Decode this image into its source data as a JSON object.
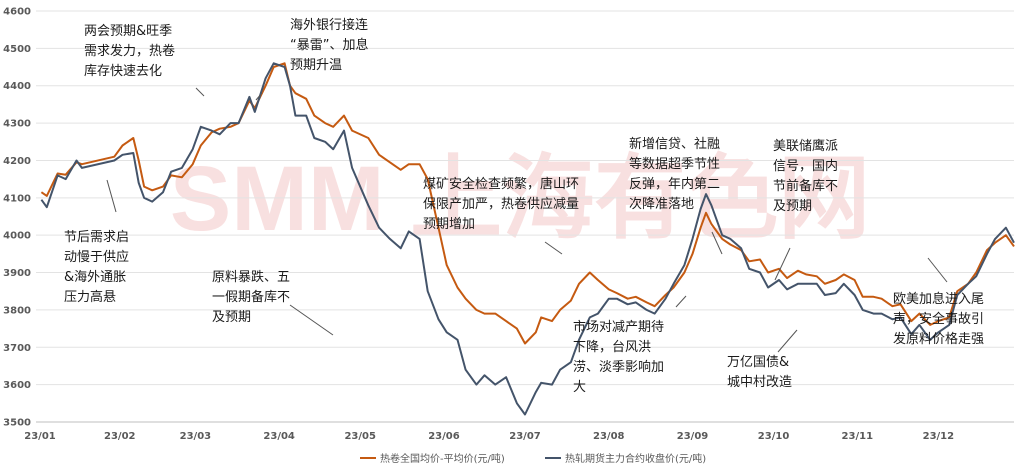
{
  "chart_data": {
    "type": "line",
    "title": "",
    "xlabel": "",
    "ylabel": "",
    "ylim": [
      3500,
      4600
    ],
    "y_ticks": [
      3500,
      3600,
      3700,
      3800,
      3900,
      4000,
      4100,
      4200,
      4300,
      4400,
      4500,
      4600
    ],
    "x_range": [
      "2023-01-01",
      "2023-12-29"
    ],
    "x_tick_labels": [
      "23/01",
      "23/02",
      "23/03",
      "23/04",
      "23/05",
      "23/06",
      "23/07",
      "23/08",
      "23/09",
      "23/10",
      "23/11",
      "23/12"
    ],
    "grid": "horizontal",
    "legend_position": "bottom",
    "watermark": "SMM 上海有色网",
    "colors": {
      "spot": "#C55A11",
      "futures": "#44546A"
    },
    "series": [
      {
        "name": "热卷全国均价-平均价(元/吨)",
        "points": [
          [
            "2023-01-03",
            4115
          ],
          [
            "2023-01-05",
            4105
          ],
          [
            "2023-01-09",
            4165
          ],
          [
            "2023-01-12",
            4162
          ],
          [
            "2023-01-16",
            4195
          ],
          [
            "2023-01-18",
            4190
          ],
          [
            "2023-01-30",
            4210
          ],
          [
            "2023-02-02",
            4240
          ],
          [
            "2023-02-06",
            4260
          ],
          [
            "2023-02-08",
            4200
          ],
          [
            "2023-02-10",
            4130
          ],
          [
            "2023-02-13",
            4120
          ],
          [
            "2023-02-17",
            4130
          ],
          [
            "2023-02-20",
            4160
          ],
          [
            "2023-02-24",
            4155
          ],
          [
            "2023-02-28",
            4190
          ],
          [
            "2023-03-03",
            4240
          ],
          [
            "2023-03-07",
            4275
          ],
          [
            "2023-03-10",
            4285
          ],
          [
            "2023-03-14",
            4290
          ],
          [
            "2023-03-17",
            4300
          ],
          [
            "2023-03-21",
            4360
          ],
          [
            "2023-03-23",
            4340
          ],
          [
            "2023-03-27",
            4400
          ],
          [
            "2023-03-30",
            4450
          ],
          [
            "2023-04-03",
            4460
          ],
          [
            "2023-04-05",
            4400
          ],
          [
            "2023-04-07",
            4380
          ],
          [
            "2023-04-11",
            4365
          ],
          [
            "2023-04-14",
            4320
          ],
          [
            "2023-04-18",
            4300
          ],
          [
            "2023-04-21",
            4290
          ],
          [
            "2023-04-25",
            4320
          ],
          [
            "2023-04-28",
            4280
          ],
          [
            "2023-05-04",
            4260
          ],
          [
            "2023-05-08",
            4215
          ],
          [
            "2023-05-12",
            4195
          ],
          [
            "2023-05-16",
            4175
          ],
          [
            "2023-05-19",
            4190
          ],
          [
            "2023-05-23",
            4190
          ],
          [
            "2023-05-26",
            4150
          ],
          [
            "2023-05-30",
            4020
          ],
          [
            "2023-06-02",
            3920
          ],
          [
            "2023-06-06",
            3860
          ],
          [
            "2023-06-09",
            3830
          ],
          [
            "2023-06-13",
            3800
          ],
          [
            "2023-06-16",
            3790
          ],
          [
            "2023-06-20",
            3790
          ],
          [
            "2023-06-24",
            3770
          ],
          [
            "2023-06-28",
            3750
          ],
          [
            "2023-07-01",
            3710
          ],
          [
            "2023-07-05",
            3740
          ],
          [
            "2023-07-07",
            3780
          ],
          [
            "2023-07-11",
            3770
          ],
          [
            "2023-07-14",
            3800
          ],
          [
            "2023-07-18",
            3825
          ],
          [
            "2023-07-21",
            3870
          ],
          [
            "2023-07-25",
            3900
          ],
          [
            "2023-07-28",
            3880
          ],
          [
            "2023-08-01",
            3855
          ],
          [
            "2023-08-04",
            3845
          ],
          [
            "2023-08-08",
            3830
          ],
          [
            "2023-08-11",
            3835
          ],
          [
            "2023-08-15",
            3820
          ],
          [
            "2023-08-18",
            3810
          ],
          [
            "2023-08-22",
            3840
          ],
          [
            "2023-08-25",
            3860
          ],
          [
            "2023-08-29",
            3900
          ],
          [
            "2023-09-01",
            3950
          ],
          [
            "2023-09-04",
            4020
          ],
          [
            "2023-09-06",
            4060
          ],
          [
            "2023-09-08",
            4030
          ],
          [
            "2023-09-12",
            3990
          ],
          [
            "2023-09-15",
            3975
          ],
          [
            "2023-09-19",
            3960
          ],
          [
            "2023-09-22",
            3930
          ],
          [
            "2023-09-26",
            3935
          ],
          [
            "2023-09-29",
            3900
          ],
          [
            "2023-10-03",
            3910
          ],
          [
            "2023-10-06",
            3885
          ],
          [
            "2023-10-10",
            3905
          ],
          [
            "2023-10-13",
            3895
          ],
          [
            "2023-10-17",
            3890
          ],
          [
            "2023-10-20",
            3870
          ],
          [
            "2023-10-24",
            3880
          ],
          [
            "2023-10-27",
            3895
          ],
          [
            "2023-10-31",
            3880
          ],
          [
            "2023-11-03",
            3835
          ],
          [
            "2023-11-07",
            3835
          ],
          [
            "2023-11-10",
            3830
          ],
          [
            "2023-11-14",
            3810
          ],
          [
            "2023-11-17",
            3815
          ],
          [
            "2023-11-21",
            3770
          ],
          [
            "2023-11-24",
            3790
          ],
          [
            "2023-11-28",
            3760
          ],
          [
            "2023-12-01",
            3770
          ],
          [
            "2023-12-05",
            3780
          ],
          [
            "2023-12-08",
            3850
          ],
          [
            "2023-12-12",
            3870
          ],
          [
            "2023-12-15",
            3900
          ],
          [
            "2023-12-19",
            3960
          ],
          [
            "2023-12-22",
            3980
          ],
          [
            "2023-12-26",
            4000
          ],
          [
            "2023-12-29",
            3970
          ]
        ]
      },
      {
        "name": "热轧期货主力合约收盘价(元/吨)",
        "points": [
          [
            "2023-01-03",
            4095
          ],
          [
            "2023-01-05",
            4075
          ],
          [
            "2023-01-09",
            4160
          ],
          [
            "2023-01-12",
            4150
          ],
          [
            "2023-01-16",
            4200
          ],
          [
            "2023-01-18",
            4180
          ],
          [
            "2023-01-30",
            4200
          ],
          [
            "2023-02-02",
            4215
          ],
          [
            "2023-02-06",
            4220
          ],
          [
            "2023-02-08",
            4140
          ],
          [
            "2023-02-10",
            4100
          ],
          [
            "2023-02-13",
            4090
          ],
          [
            "2023-02-17",
            4115
          ],
          [
            "2023-02-20",
            4170
          ],
          [
            "2023-02-24",
            4180
          ],
          [
            "2023-02-28",
            4230
          ],
          [
            "2023-03-03",
            4290
          ],
          [
            "2023-03-07",
            4280
          ],
          [
            "2023-03-10",
            4270
          ],
          [
            "2023-03-14",
            4300
          ],
          [
            "2023-03-17",
            4300
          ],
          [
            "2023-03-21",
            4370
          ],
          [
            "2023-03-23",
            4330
          ],
          [
            "2023-03-27",
            4420
          ],
          [
            "2023-03-30",
            4460
          ],
          [
            "2023-04-03",
            4450
          ],
          [
            "2023-04-05",
            4400
          ],
          [
            "2023-04-07",
            4320
          ],
          [
            "2023-04-11",
            4320
          ],
          [
            "2023-04-14",
            4260
          ],
          [
            "2023-04-18",
            4250
          ],
          [
            "2023-04-21",
            4230
          ],
          [
            "2023-04-25",
            4280
          ],
          [
            "2023-04-28",
            4180
          ],
          [
            "2023-05-04",
            4080
          ],
          [
            "2023-05-08",
            4020
          ],
          [
            "2023-05-12",
            3990
          ],
          [
            "2023-05-16",
            3965
          ],
          [
            "2023-05-19",
            4010
          ],
          [
            "2023-05-23",
            3990
          ],
          [
            "2023-05-26",
            3850
          ],
          [
            "2023-05-30",
            3775
          ],
          [
            "2023-06-02",
            3740
          ],
          [
            "2023-06-06",
            3720
          ],
          [
            "2023-06-09",
            3640
          ],
          [
            "2023-06-13",
            3600
          ],
          [
            "2023-06-16",
            3625
          ],
          [
            "2023-06-20",
            3600
          ],
          [
            "2023-06-24",
            3620
          ],
          [
            "2023-06-28",
            3550
          ],
          [
            "2023-07-01",
            3520
          ],
          [
            "2023-07-05",
            3580
          ],
          [
            "2023-07-07",
            3605
          ],
          [
            "2023-07-11",
            3600
          ],
          [
            "2023-07-14",
            3640
          ],
          [
            "2023-07-18",
            3660
          ],
          [
            "2023-07-21",
            3720
          ],
          [
            "2023-07-25",
            3780
          ],
          [
            "2023-07-28",
            3790
          ],
          [
            "2023-08-01",
            3830
          ],
          [
            "2023-08-04",
            3830
          ],
          [
            "2023-08-08",
            3815
          ],
          [
            "2023-08-11",
            3820
          ],
          [
            "2023-08-15",
            3800
          ],
          [
            "2023-08-18",
            3790
          ],
          [
            "2023-08-22",
            3830
          ],
          [
            "2023-08-25",
            3870
          ],
          [
            "2023-08-29",
            3920
          ],
          [
            "2023-09-01",
            3990
          ],
          [
            "2023-09-04",
            4070
          ],
          [
            "2023-09-06",
            4110
          ],
          [
            "2023-09-08",
            4080
          ],
          [
            "2023-09-12",
            4000
          ],
          [
            "2023-09-15",
            3990
          ],
          [
            "2023-09-19",
            3965
          ],
          [
            "2023-09-22",
            3910
          ],
          [
            "2023-09-26",
            3900
          ],
          [
            "2023-09-29",
            3860
          ],
          [
            "2023-10-03",
            3880
          ],
          [
            "2023-10-06",
            3855
          ],
          [
            "2023-10-10",
            3870
          ],
          [
            "2023-10-13",
            3870
          ],
          [
            "2023-10-17",
            3870
          ],
          [
            "2023-10-20",
            3840
          ],
          [
            "2023-10-24",
            3845
          ],
          [
            "2023-10-27",
            3870
          ],
          [
            "2023-10-31",
            3840
          ],
          [
            "2023-11-03",
            3800
          ],
          [
            "2023-11-07",
            3790
          ],
          [
            "2023-11-10",
            3790
          ],
          [
            "2023-11-14",
            3775
          ],
          [
            "2023-11-17",
            3780
          ],
          [
            "2023-11-21",
            3735
          ],
          [
            "2023-11-24",
            3760
          ],
          [
            "2023-11-28",
            3720
          ],
          [
            "2023-12-01",
            3740
          ],
          [
            "2023-12-05",
            3760
          ],
          [
            "2023-12-08",
            3840
          ],
          [
            "2023-12-12",
            3870
          ],
          [
            "2023-12-15",
            3890
          ],
          [
            "2023-12-19",
            3950
          ],
          [
            "2023-12-22",
            3990
          ],
          [
            "2023-12-26",
            4020
          ],
          [
            "2023-12-29",
            3980
          ]
        ]
      }
    ],
    "annotations": [
      {
        "lines": [
          "两会预期&旺季",
          "需求发力，热卷",
          "库存快速去化"
        ]
      },
      {
        "lines": [
          "海外银行接连",
          "“暴雷”、加息",
          "预期升温"
        ]
      },
      {
        "lines": [
          "节后需求启",
          "动慢于供应",
          "&海外通胀",
          "压力高悬"
        ]
      },
      {
        "lines": [
          "原料暴跌、五",
          "一假期备库不",
          "及预期"
        ]
      },
      {
        "lines": [
          "煤矿安全检查频繁，唐山环",
          "保限产加严，热卷供应减量",
          "预期增加"
        ]
      },
      {
        "lines": [
          "新增信贷、社融",
          "等数据超季节性",
          "反弹，年内第二",
          "次降准落地"
        ]
      },
      {
        "lines": [
          "美联储鹰派",
          "信号，国内",
          "节前备库不",
          "及预期"
        ]
      },
      {
        "lines": [
          "市场对减产期待",
          "下降，台风洪",
          "涝、淡季影响加",
          "大"
        ]
      },
      {
        "lines": [
          "万亿国债&",
          "城中村改造"
        ]
      },
      {
        "lines": [
          "欧美加息进入尾",
          "声，安全事故引",
          "发原料价格走强"
        ]
      }
    ]
  }
}
